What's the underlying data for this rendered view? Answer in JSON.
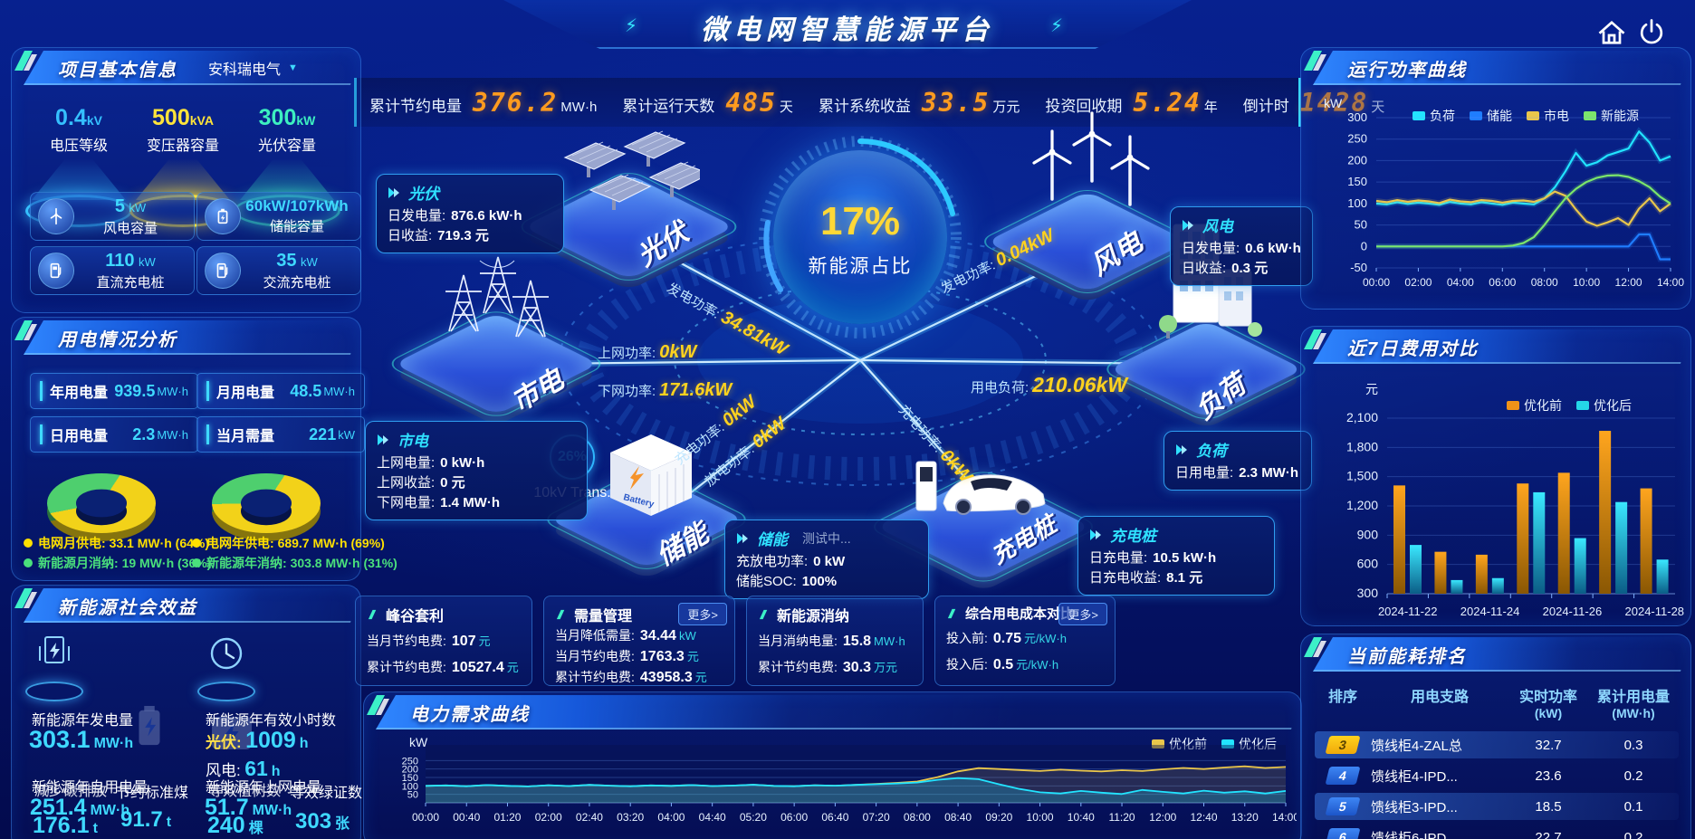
{
  "header": {
    "title": "微电网智慧能源平台"
  },
  "kpi": {
    "items": [
      {
        "label": "累计节约电量",
        "value": "376.2",
        "unit": "MW·h"
      },
      {
        "label": "累计运行天数",
        "value": "485",
        "unit": "天"
      },
      {
        "label": "累计系统收益",
        "value": "33.5",
        "unit": "万元"
      },
      {
        "label": "投资回收期",
        "value": "5.24",
        "unit": "年"
      },
      {
        "label": "倒计时",
        "value": "1428",
        "unit": "天"
      }
    ]
  },
  "project": {
    "title": "项目基本信息",
    "company": "安科瑞电气",
    "podiums": [
      {
        "value": "0.4",
        "unit": "kV",
        "label": "电压等级",
        "color": "#35c0ff"
      },
      {
        "value": "500",
        "unit": "kVA",
        "label": "变压器容量",
        "color": "#ffe43a"
      },
      {
        "value": "300",
        "unit": "kW",
        "label": "光伏容量",
        "color": "#3df0c0"
      }
    ],
    "stats": [
      {
        "value": "5",
        "unit": "kW",
        "label": "风电容量",
        "icon": "wind-turbine-icon"
      },
      {
        "value": "60kW/107kWh",
        "unit": "",
        "label": "储能容量",
        "icon": "battery-icon"
      },
      {
        "value": "110",
        "unit": "kW",
        "label": "直流充电桩",
        "icon": "dc-charger-icon"
      },
      {
        "value": "35",
        "unit": "kW",
        "label": "交流充电桩",
        "icon": "ac-charger-icon"
      }
    ]
  },
  "usage": {
    "title": "用电情况分析",
    "boxes": [
      {
        "label": "年用电量",
        "value": "939.5",
        "unit": "MW·h"
      },
      {
        "label": "月用电量",
        "value": "48.5",
        "unit": "MW·h"
      },
      {
        "label": "日用电量",
        "value": "2.3",
        "unit": "MW·h"
      },
      {
        "label": "当月需量",
        "value": "221",
        "unit": "kW"
      }
    ],
    "donuts": [
      {
        "grid_pct": 64,
        "renew_pct": 36
      },
      {
        "grid_pct": 69,
        "renew_pct": 31
      }
    ],
    "legends": [
      {
        "label": "电网月供电:",
        "value": "33.1 MW·h (64%)",
        "color": "#ffe000"
      },
      {
        "label": "新能源月消纳:",
        "value": "19 MW·h (36%)",
        "color": "#4ae07c"
      },
      {
        "label": "电网年供电:",
        "value": "689.7 MW·h (69%)",
        "color": "#ffe000"
      },
      {
        "label": "新能源年消纳:",
        "value": "303.8 MW·h (31%)",
        "color": "#4ae07c"
      }
    ]
  },
  "social": {
    "title": "新能源社会效益",
    "gen": {
      "label": "新能源年发电量",
      "value": "303.1",
      "unit": "MW·h"
    },
    "hours": {
      "label": "新能源年有效小时数",
      "pv_k": "光伏:",
      "pv_v": "1009",
      "pv_u": "h",
      "wind_k": "风电:",
      "wind_v": "61",
      "wind_u": "h"
    },
    "self_use": {
      "label": "新能源年自用电量",
      "value": "251.4",
      "unit": "MW·h"
    },
    "to_grid": {
      "label": "新能源年上网电量",
      "value": "51.7",
      "unit": "MW·h"
    },
    "co2": {
      "label": "减少碳排放",
      "value": "176.1",
      "unit": "t"
    },
    "coal": {
      "label": "节约标准煤",
      "value": "91.7",
      "unit": "t"
    },
    "trees": {
      "label": "等效植树数",
      "value": "240",
      "unit": "棵"
    },
    "certs": {
      "label": "等效绿证数",
      "value": "303",
      "unit": "张"
    }
  },
  "center": {
    "ratio_value": "17%",
    "ratio_label": "新能源占比",
    "trans_pct": "26%",
    "trans_label": "10kV Trans.",
    "nodes": {
      "pv": {
        "name": "光伏",
        "rows": [
          {
            "k": "日发电量:",
            "v": "876.6 kW·h"
          },
          {
            "k": "日收益:",
            "v": "719.3 元"
          }
        ]
      },
      "wind": {
        "name": "风电",
        "rows": [
          {
            "k": "日发电量:",
            "v": "0.6 kW·h"
          },
          {
            "k": "日收益:",
            "v": "0.3 元"
          }
        ]
      },
      "grid": {
        "name": "市电",
        "rows": [
          {
            "k": "上网电量:",
            "v": "0 kW·h"
          },
          {
            "k": "上网收益:",
            "v": "0 元"
          },
          {
            "k": "下网电量:",
            "v": "1.4 MW·h"
          }
        ]
      },
      "storage": {
        "name": "储能",
        "status": "测试中...",
        "rows": [
          {
            "k": "充放电功率:",
            "v": "0 kW"
          },
          {
            "k": "储能SOC:",
            "v": "100%"
          }
        ]
      },
      "load": {
        "name": "负荷",
        "rows": [
          {
            "k": "日用电量:",
            "v": "2.3 MW·h"
          }
        ]
      },
      "charger": {
        "name": "充电桩",
        "rows": [
          {
            "k": "日充电量:",
            "v": "10.5 kW·h"
          },
          {
            "k": "日充电收益:",
            "v": "8.1 元"
          }
        ]
      }
    },
    "flows": {
      "pv_gen": {
        "k": "发电功率:",
        "v": "34.81kW"
      },
      "grid_up": {
        "k": "上网功率:",
        "v": "0kW"
      },
      "grid_down": {
        "k": "下网功率:",
        "v": "171.6kW"
      },
      "st_chg": {
        "k": "充电功率:",
        "v": "0kW"
      },
      "st_dis": {
        "k": "放电功率:",
        "v": "0kW"
      },
      "wind_gen": {
        "k": "发电功率:",
        "v": "0.04kW"
      },
      "load": {
        "k": "用电负荷:",
        "v": "210.06kW"
      },
      "ev_chg": {
        "k": "充电功率:",
        "v": "0kW"
      }
    }
  },
  "cards": [
    {
      "title": "峰谷套利",
      "more": "",
      "rows": [
        {
          "k": "当月节约电费:",
          "v": "107",
          "u": "元"
        },
        {
          "k": "累计节约电费:",
          "v": "10527.4",
          "u": "元"
        }
      ]
    },
    {
      "title": "需量管理",
      "more": "更多>",
      "rows": [
        {
          "k": "当月降低需量:",
          "v": "34.44",
          "u": "kW"
        },
        {
          "k": "当月节约电费:",
          "v": "1763.3",
          "u": "元"
        },
        {
          "k": "累计节约电费:",
          "v": "43958.3",
          "u": "元"
        }
      ]
    },
    {
      "title": "新能源消纳",
      "more": "",
      "rows": [
        {
          "k": "当月消纳电量:",
          "v": "15.8",
          "u": "MW·h"
        },
        {
          "k": "累计节约电费:",
          "v": "30.3",
          "u": "万元"
        }
      ]
    },
    {
      "title": "综合用电成本对比",
      "more": "更多>",
      "rows": [
        {
          "k": "投入前:",
          "v": "0.75",
          "u": "元/kW·h"
        },
        {
          "k": "投入后:",
          "v": "0.5",
          "u": "元/kW·h"
        }
      ]
    }
  ],
  "rank": {
    "title": "当前能耗排名",
    "headers": [
      {
        "t": "排序",
        "s": ""
      },
      {
        "t": "用电支路",
        "s": ""
      },
      {
        "t": "实时功率",
        "s": "(kW)"
      },
      {
        "t": "累计用电量",
        "s": "(MW·h)"
      }
    ],
    "rows": [
      {
        "rank": "3",
        "branch": "馈线柜4-ZAL总",
        "power": "32.7",
        "energy": "0.3"
      },
      {
        "rank": "4",
        "branch": "馈线柜4-IPD...",
        "power": "23.6",
        "energy": "0.2"
      },
      {
        "rank": "5",
        "branch": "馈线柜3-IPD...",
        "power": "18.5",
        "energy": "0.1"
      },
      {
        "rank": "6",
        "branch": "馈线柜6-IPD",
        "power": "22.7",
        "energy": "0.2"
      }
    ]
  },
  "chart_data": [
    {
      "id": "run",
      "type": "line",
      "title": "运行功率曲线",
      "ylabel": "kW",
      "ylim": [
        -50,
        300
      ],
      "y_ticks": [
        300,
        250,
        200,
        150,
        100,
        50,
        0,
        -50
      ],
      "x_ticks": [
        "00:00",
        "02:00",
        "04:00",
        "06:00",
        "08:00",
        "10:00",
        "12:00",
        "14:00"
      ],
      "legend_position": "top",
      "grid": true,
      "series": [
        {
          "name": "负荷",
          "color": "#22e4ff",
          "values": [
            100,
            98,
            103,
            99,
            102,
            100,
            97,
            104,
            100,
            98,
            103,
            100,
            97,
            102,
            100,
            98,
            112,
            138,
            175,
            218,
            188,
            196,
            212,
            220,
            228,
            268,
            242,
            200,
            210
          ]
        },
        {
          "name": "储能",
          "color": "#1f7dff",
          "values": [
            0,
            0,
            0,
            0,
            0,
            0,
            0,
            0,
            0,
            0,
            0,
            0,
            0,
            0,
            0,
            0,
            0,
            0,
            0,
            0,
            0,
            0,
            0,
            0,
            0,
            28,
            28,
            -30,
            -30
          ]
        },
        {
          "name": "市电",
          "color": "#e9c64b",
          "values": [
            106,
            103,
            108,
            104,
            107,
            105,
            101,
            109,
            105,
            103,
            108,
            106,
            102,
            106,
            107,
            104,
            112,
            128,
            118,
            86,
            58,
            48,
            56,
            66,
            50,
            88,
            112,
            82,
            100
          ]
        },
        {
          "name": "新能源",
          "color": "#7be66a",
          "values": [
            0,
            0,
            0,
            0,
            0,
            0,
            0,
            0,
            0,
            0,
            0,
            0,
            0,
            2,
            8,
            22,
            50,
            82,
            112,
            134,
            150,
            160,
            165,
            166,
            162,
            152,
            138,
            116,
            100
          ]
        }
      ]
    },
    {
      "id": "cost",
      "type": "bar",
      "title": "近7日费用对比",
      "ylabel": "元",
      "ylim": [
        300,
        2100
      ],
      "y_ticks": [
        2100,
        1800,
        1500,
        1200,
        900,
        600,
        300
      ],
      "categories": [
        "2024-11-22",
        "2024-11-23",
        "2024-11-24",
        "2024-11-25",
        "2024-11-26",
        "2024-11-27",
        "2024-11-28"
      ],
      "x_ticks_shown": [
        "2024-11-22",
        "2024-11-24",
        "2024-11-26",
        "2024-11-28"
      ],
      "legend_position": "top-right",
      "grid": true,
      "series": [
        {
          "name": "优化前",
          "color": "#f09218",
          "values": [
            1410,
            730,
            700,
            1430,
            1540,
            1970,
            1380
          ]
        },
        {
          "name": "优化后",
          "color": "#25d6e8",
          "values": [
            800,
            440,
            460,
            1340,
            870,
            1240,
            650
          ]
        }
      ]
    },
    {
      "id": "demand",
      "type": "line",
      "title": "电力需求曲线",
      "ylabel": "kW",
      "ylim": [
        0,
        300
      ],
      "y_ticks": [
        250,
        200,
        150,
        100,
        50
      ],
      "x_ticks": [
        "00:00",
        "00:40",
        "01:20",
        "02:00",
        "02:40",
        "03:20",
        "04:00",
        "04:40",
        "05:20",
        "06:00",
        "06:40",
        "07:20",
        "08:00",
        "08:40",
        "09:20",
        "10:00",
        "10:40",
        "11:20",
        "12:00",
        "12:40",
        "13:20",
        "14:00"
      ],
      "legend_position": "top-right",
      "grid": true,
      "series": [
        {
          "name": "优化前",
          "color": "#e9c64b",
          "values": [
            100,
            103,
            98,
            105,
            100,
            97,
            104,
            99,
            106,
            101,
            98,
            103,
            100,
            105,
            99,
            102,
            107,
            100,
            98,
            104,
            101,
            106,
            112,
            118,
            126,
            152,
            186,
            205,
            200,
            194,
            188,
            196,
            190,
            186,
            193,
            188,
            198,
            206,
            200,
            209,
            216,
            206,
            212
          ]
        },
        {
          "name": "优化后",
          "color": "#22e4ff",
          "values": [
            100,
            103,
            98,
            105,
            100,
            97,
            104,
            99,
            106,
            101,
            98,
            103,
            100,
            105,
            99,
            102,
            107,
            100,
            98,
            104,
            101,
            106,
            110,
            114,
            120,
            136,
            146,
            140,
            110,
            82,
            62,
            55,
            70,
            60,
            52,
            76,
            65,
            55,
            72,
            60,
            68,
            55,
            70
          ]
        }
      ]
    }
  ]
}
